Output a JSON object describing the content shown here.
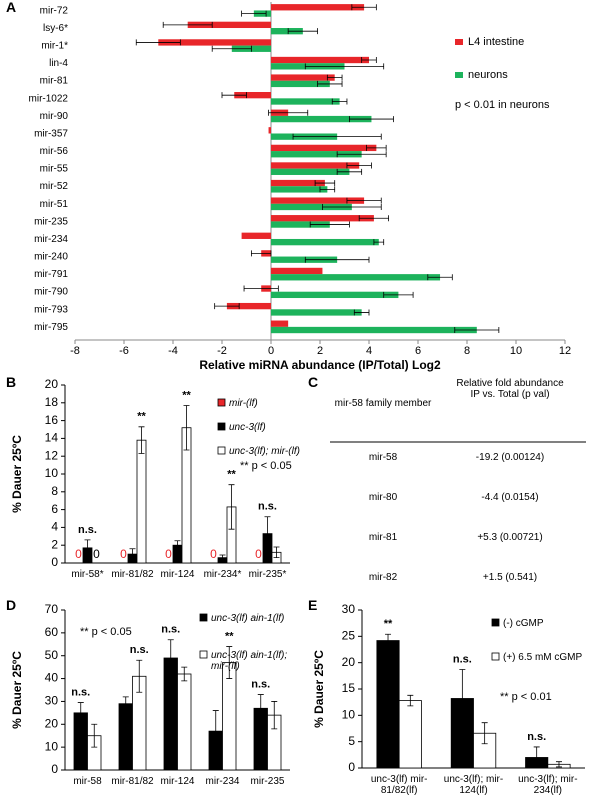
{
  "chart_data": [
    {
      "panel": "A",
      "type": "hbar",
      "categories": [
        "mir-72",
        "lsy-6*",
        "mir-1*",
        "lin-4",
        "mir-81",
        "mir-1022",
        "mir-90",
        "mir-357",
        "mir-56",
        "mir-55",
        "mir-52",
        "mir-51",
        "mir-235",
        "mir-234",
        "mir-240",
        "mir-791",
        "mir-790",
        "mir-793",
        "mir-795"
      ],
      "series": [
        {
          "name": "L4 intestine",
          "color": "#e8262a",
          "values": [
            3.8,
            -3.4,
            -4.6,
            4.0,
            2.6,
            -1.5,
            0.7,
            -0.1,
            4.3,
            3.6,
            2.2,
            3.8,
            4.2,
            -1.2,
            -0.4,
            2.1,
            -0.4,
            -1.8,
            0.7
          ],
          "errors": [
            0.5,
            1.0,
            0.9,
            0.3,
            0.3,
            0.5,
            0.8,
            0,
            0.4,
            0.5,
            0.4,
            0.7,
            0.6,
            0,
            0.4,
            0,
            0.7,
            0.5,
            0
          ]
        },
        {
          "name": "neurons",
          "color": "#1db35c",
          "values": [
            -0.7,
            1.3,
            -1.6,
            3.0,
            2.4,
            2.8,
            4.1,
            2.7,
            3.7,
            3.2,
            2.3,
            3.3,
            2.4,
            4.4,
            2.7,
            6.9,
            5.2,
            3.7,
            8.4
          ],
          "errors": [
            0.5,
            0.6,
            0.8,
            1.6,
            0.5,
            0.3,
            0.9,
            1.8,
            1.0,
            0.5,
            0.3,
            1.2,
            0.8,
            0.2,
            1.3,
            0.5,
            0.6,
            0.3,
            0.9
          ]
        }
      ],
      "xlim": [
        -8,
        12
      ],
      "xticks": [
        -8,
        -6,
        -4,
        -2,
        0,
        2,
        4,
        6,
        8,
        10,
        12
      ],
      "xlabel": "Relative miRNA abundance (IP/Total) Log2",
      "annotation": "p < 0.01 in neurons"
    },
    {
      "panel": "B",
      "type": "bar",
      "categories": [
        "mir-58*",
        "mir-81/82",
        "mir-124",
        "mir-234*",
        "mir-235*"
      ],
      "series": [
        {
          "name": "mir-(lf)",
          "color": "#e8262a",
          "values": [
            0,
            0,
            0,
            0,
            0
          ]
        },
        {
          "name": "unc-3(lf)",
          "color": "#000000",
          "values": [
            1.7,
            1.0,
            2.0,
            0.6,
            3.3
          ],
          "errors": [
            0.9,
            0.6,
            0.5,
            0.3,
            1.9
          ]
        },
        {
          "name": "unc-3(lf); mir-(lf)",
          "color": "#ffffff",
          "values": [
            0,
            13.8,
            15.2,
            6.3,
            1.2
          ],
          "errors": [
            0,
            1.5,
            2.5,
            2.5,
            0.6
          ]
        }
      ],
      "ylim": [
        0,
        20
      ],
      "yticks": [
        0,
        2,
        4,
        6,
        8,
        10,
        12,
        14,
        16,
        18,
        20
      ],
      "ylabel": "% Dauer 25ºC",
      "significance": [
        "n.s.",
        "**",
        "**",
        "**",
        "n.s."
      ],
      "annotation": "** p < 0.05"
    },
    {
      "panel": "D",
      "type": "bar",
      "categories": [
        "mir-58",
        "mir-81/82",
        "mir-124",
        "mir-234",
        "mir-235"
      ],
      "series": [
        {
          "name": "unc-3(lf) ain-1(lf)",
          "color": "#000000",
          "values": [
            25,
            29,
            49,
            17,
            27
          ],
          "errors": [
            4.5,
            3,
            8,
            9,
            6
          ]
        },
        {
          "name": "unc-3(lf) ain-1(lf); mir-(lf)",
          "color": "#ffffff",
          "values": [
            15,
            41,
            42,
            47,
            24
          ],
          "errors": [
            5,
            7,
            3,
            7,
            6
          ]
        }
      ],
      "ylim": [
        0,
        70
      ],
      "yticks": [
        0,
        10,
        20,
        30,
        40,
        50,
        60,
        70
      ],
      "ylabel": "% Dauer 25ºC",
      "significance": [
        "n.s.",
        "n.s.",
        "n.s.",
        "**",
        "n.s."
      ],
      "annotation": "** p < 0.05"
    },
    {
      "panel": "E",
      "type": "bar",
      "categories": [
        "unc-3(lf) mir-81/82(lf)",
        "unc-3(lf); mir-124(lf)",
        "unc-3(lf); mir-234(lf)"
      ],
      "series": [
        {
          "name": "(-) cGMP",
          "color": "#000000",
          "values": [
            24.2,
            13.2,
            2.0
          ],
          "errors": [
            1.2,
            5.5,
            2.0
          ]
        },
        {
          "name": "(+) 6.5 mM cGMP",
          "color": "#ffffff",
          "values": [
            12.8,
            6.6,
            0.7
          ],
          "errors": [
            1.0,
            2.0,
            0.5
          ]
        }
      ],
      "ylim": [
        0,
        30
      ],
      "yticks": [
        0,
        5,
        10,
        15,
        20,
        25,
        30
      ],
      "ylabel": "% Dauer 25ºC",
      "significance": [
        "**",
        "n.s.",
        "n.s."
      ],
      "annotation": "** p < 0.01"
    }
  ],
  "table": {
    "panel": "C",
    "header": [
      "mir-58 family member",
      "Relative fold abundance IP vs. Total (p val)"
    ],
    "rows": [
      [
        "mir-58",
        "-19.2 (0.00124)"
      ],
      [
        "mir-80",
        "-4.4 (0.0154)"
      ],
      [
        "mir-81",
        "+5.3 (0.00721)"
      ],
      [
        "mir-82",
        "+1.5 (0.541)"
      ]
    ]
  }
}
